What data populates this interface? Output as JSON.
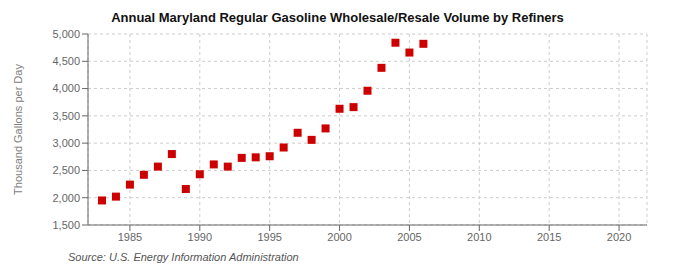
{
  "chart_data": {
    "type": "scatter",
    "title": "Annual Maryland Regular Gasoline Wholesale/Resale Volume by Refiners",
    "ylabel": "Thousand Gallons per Day",
    "source": "Source: U.S. Energy Information Administration",
    "x": [
      1983,
      1984,
      1985,
      1986,
      1987,
      1988,
      1989,
      1990,
      1991,
      1992,
      1993,
      1994,
      1995,
      1996,
      1997,
      1998,
      1999,
      2000,
      2001,
      2002,
      2003,
      2004,
      2005,
      2006
    ],
    "values": [
      1950,
      2020,
      2240,
      2420,
      2570,
      2800,
      2160,
      2430,
      2610,
      2570,
      2730,
      2740,
      2760,
      2920,
      3190,
      3060,
      3270,
      3630,
      3660,
      3960,
      4380,
      4840,
      4660,
      4820
    ],
    "color": "#cc0000",
    "marker": "square",
    "xlim": [
      1982,
      2022
    ],
    "ylim": [
      1500,
      5000
    ],
    "xticks": [
      1985,
      1990,
      1995,
      2000,
      2005,
      2010,
      2015,
      2020
    ],
    "yticks": [
      {
        "value": 1500,
        "label": "1,500"
      },
      {
        "value": 2000,
        "label": "2,000"
      },
      {
        "value": 2500,
        "label": "2,500"
      },
      {
        "value": 3000,
        "label": "3,000"
      },
      {
        "value": 3500,
        "label": "3,500"
      },
      {
        "value": 4000,
        "label": "4,000"
      },
      {
        "value": 4500,
        "label": "4,500"
      },
      {
        "value": 5000,
        "label": "5,000"
      }
    ],
    "grid": true
  }
}
